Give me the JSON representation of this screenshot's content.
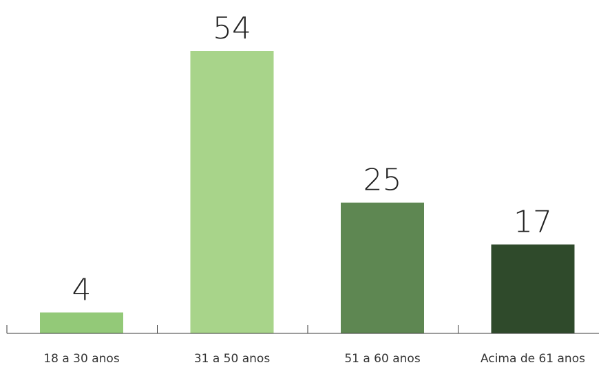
{
  "chart_data": {
    "type": "bar",
    "categories": [
      "18 a 30 anos",
      "31 a 50 anos",
      "51 a 60 anos",
      "Acima de 61 anos"
    ],
    "values": [
      4,
      54,
      25,
      17
    ],
    "data_labels": [
      "4",
      "54",
      "25",
      "17"
    ],
    "colors": [
      "#93c978",
      "#a8d48a",
      "#5e8752",
      "#2f4a2b"
    ],
    "title": "",
    "xlabel": "",
    "ylabel": "",
    "ylim": [
      0,
      54
    ],
    "grid": false,
    "legend": "none"
  }
}
